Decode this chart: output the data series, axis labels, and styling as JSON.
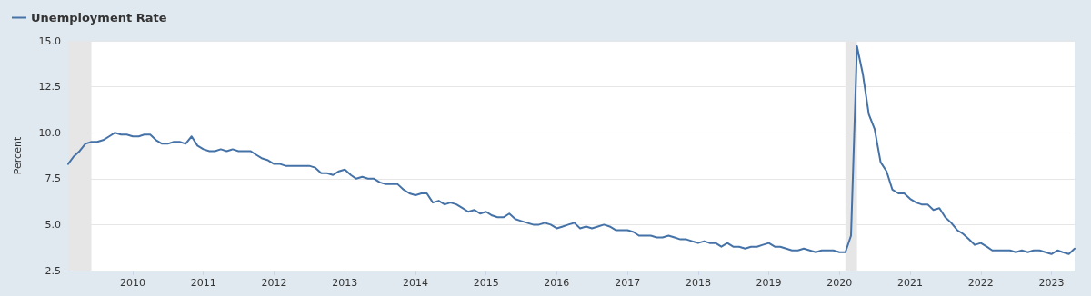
{
  "chart_data": {
    "type": "line",
    "ylabel": "Percent",
    "legend": "top left",
    "grid": "y",
    "marker": "none",
    "line_style": "solid",
    "x": [
      "2009-02",
      "2009-03",
      "2009-04",
      "2009-05",
      "2009-06",
      "2009-07",
      "2009-08",
      "2009-09",
      "2009-10",
      "2009-11",
      "2009-12",
      "2010-01",
      "2010-02",
      "2010-03",
      "2010-04",
      "2010-05",
      "2010-06",
      "2010-07",
      "2010-08",
      "2010-09",
      "2010-10",
      "2010-11",
      "2010-12",
      "2011-01",
      "2011-02",
      "2011-03",
      "2011-04",
      "2011-05",
      "2011-06",
      "2011-07",
      "2011-08",
      "2011-09",
      "2011-10",
      "2011-11",
      "2011-12",
      "2012-01",
      "2012-02",
      "2012-03",
      "2012-04",
      "2012-05",
      "2012-06",
      "2012-07",
      "2012-08",
      "2012-09",
      "2012-10",
      "2012-11",
      "2012-12",
      "2013-01",
      "2013-02",
      "2013-03",
      "2013-04",
      "2013-05",
      "2013-06",
      "2013-07",
      "2013-08",
      "2013-09",
      "2013-10",
      "2013-11",
      "2013-12",
      "2014-01",
      "2014-02",
      "2014-03",
      "2014-04",
      "2014-05",
      "2014-06",
      "2014-07",
      "2014-08",
      "2014-09",
      "2014-10",
      "2014-11",
      "2014-12",
      "2015-01",
      "2015-02",
      "2015-03",
      "2015-04",
      "2015-05",
      "2015-06",
      "2015-07",
      "2015-08",
      "2015-09",
      "2015-10",
      "2015-11",
      "2015-12",
      "2016-01",
      "2016-02",
      "2016-03",
      "2016-04",
      "2016-05",
      "2016-06",
      "2016-07",
      "2016-08",
      "2016-09",
      "2016-10",
      "2016-11",
      "2016-12",
      "2017-01",
      "2017-02",
      "2017-03",
      "2017-04",
      "2017-05",
      "2017-06",
      "2017-07",
      "2017-08",
      "2017-09",
      "2017-10",
      "2017-11",
      "2017-12",
      "2018-01",
      "2018-02",
      "2018-03",
      "2018-04",
      "2018-05",
      "2018-06",
      "2018-07",
      "2018-08",
      "2018-09",
      "2018-10",
      "2018-11",
      "2018-12",
      "2019-01",
      "2019-02",
      "2019-03",
      "2019-04",
      "2019-05",
      "2019-06",
      "2019-07",
      "2019-08",
      "2019-09",
      "2019-10",
      "2019-11",
      "2019-12",
      "2020-01",
      "2020-02",
      "2020-03",
      "2020-04",
      "2020-05",
      "2020-06",
      "2020-07",
      "2020-08",
      "2020-09",
      "2020-10",
      "2020-11",
      "2020-12",
      "2021-01",
      "2021-02",
      "2021-03",
      "2021-04",
      "2021-05",
      "2021-06",
      "2021-07",
      "2021-08",
      "2021-09",
      "2021-10",
      "2021-11",
      "2021-12",
      "2022-01",
      "2022-02",
      "2022-03",
      "2022-04",
      "2022-05",
      "2022-06",
      "2022-07",
      "2022-08",
      "2022-09",
      "2022-10",
      "2022-11",
      "2022-12",
      "2023-01",
      "2023-02",
      "2023-03",
      "2023-04",
      "2023-05"
    ],
    "series": [
      {
        "name": "Unemployment Rate",
        "color": "#4572a7",
        "values": [
          8.3,
          8.7,
          9.0,
          9.4,
          9.5,
          9.5,
          9.6,
          9.8,
          10.0,
          9.9,
          9.9,
          9.8,
          9.8,
          9.9,
          9.9,
          9.6,
          9.4,
          9.4,
          9.5,
          9.5,
          9.4,
          9.8,
          9.3,
          9.1,
          9.0,
          9.0,
          9.1,
          9.0,
          9.1,
          9.0,
          9.0,
          9.0,
          8.8,
          8.6,
          8.5,
          8.3,
          8.3,
          8.2,
          8.2,
          8.2,
          8.2,
          8.2,
          8.1,
          7.8,
          7.8,
          7.7,
          7.9,
          8.0,
          7.7,
          7.5,
          7.6,
          7.5,
          7.5,
          7.3,
          7.2,
          7.2,
          7.2,
          6.9,
          6.7,
          6.6,
          6.7,
          6.7,
          6.2,
          6.3,
          6.1,
          6.2,
          6.1,
          5.9,
          5.7,
          5.8,
          5.6,
          5.7,
          5.5,
          5.4,
          5.4,
          5.6,
          5.3,
          5.2,
          5.1,
          5.0,
          5.0,
          5.1,
          5.0,
          4.8,
          4.9,
          5.0,
          5.1,
          4.8,
          4.9,
          4.8,
          4.9,
          5.0,
          4.9,
          4.7,
          4.7,
          4.7,
          4.6,
          4.4,
          4.4,
          4.4,
          4.3,
          4.3,
          4.4,
          4.3,
          4.2,
          4.2,
          4.1,
          4.0,
          4.1,
          4.0,
          4.0,
          3.8,
          4.0,
          3.8,
          3.8,
          3.7,
          3.8,
          3.8,
          3.9,
          4.0,
          3.8,
          3.8,
          3.7,
          3.6,
          3.6,
          3.7,
          3.6,
          3.5,
          3.6,
          3.6,
          3.6,
          3.5,
          3.5,
          4.4,
          14.7,
          13.2,
          11.0,
          10.2,
          8.4,
          7.9,
          6.9,
          6.7,
          6.7,
          6.4,
          6.2,
          6.1,
          6.1,
          5.8,
          5.9,
          5.4,
          5.1,
          4.7,
          4.5,
          4.2,
          3.9,
          4.0,
          3.8,
          3.6,
          3.6,
          3.6,
          3.6,
          3.5,
          3.6,
          3.5,
          3.6,
          3.6,
          3.5,
          3.4,
          3.6,
          3.5,
          3.4,
          3.7
        ]
      }
    ],
    "xlim": [
      "2009-02",
      "2023-05"
    ],
    "xticks": [
      {
        "value": "2010",
        "label": "2010"
      },
      {
        "value": "2011",
        "label": "2011"
      },
      {
        "value": "2012",
        "label": "2012"
      },
      {
        "value": "2013",
        "label": "2013"
      },
      {
        "value": "2014",
        "label": "2014"
      },
      {
        "value": "2015",
        "label": "2015"
      },
      {
        "value": "2016",
        "label": "2016"
      },
      {
        "value": "2017",
        "label": "2017"
      },
      {
        "value": "2018",
        "label": "2018"
      },
      {
        "value": "2019",
        "label": "2019"
      },
      {
        "value": "2020",
        "label": "2020"
      },
      {
        "value": "2021",
        "label": "2021"
      },
      {
        "value": "2022",
        "label": "2022"
      },
      {
        "value": "2023",
        "label": "2023"
      }
    ],
    "ylim": [
      2.5,
      15.0
    ],
    "yticks": [
      {
        "value": 2.5,
        "label": "2.5"
      },
      {
        "value": 5,
        "label": "5.0"
      },
      {
        "value": 7.5,
        "label": "7.5"
      },
      {
        "value": 10,
        "label": "10.0"
      },
      {
        "value": 12.5,
        "label": "12.5"
      },
      {
        "value": 15,
        "label": "15.0"
      }
    ],
    "bands": [
      {
        "axis": "x",
        "from": "2009-02",
        "to": "2009-06",
        "color": "#e6e6e6"
      },
      {
        "axis": "x",
        "from": "2020-02",
        "to": "2020-04",
        "color": "#e6e6e6"
      }
    ]
  }
}
